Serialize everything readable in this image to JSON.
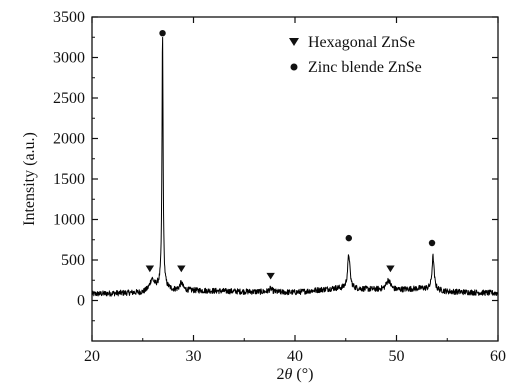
{
  "chart_data": {
    "type": "line",
    "title": "",
    "xlabel": "2θ (°)",
    "xlabel_parts": {
      "prefix": "2",
      "symbol": "θ",
      "suffix": " (°)"
    },
    "ylabel": "Intensity (a.u.)",
    "xlim": [
      20,
      60
    ],
    "ylim": [
      -500,
      3500
    ],
    "x_ticks": [
      20,
      30,
      40,
      50,
      60
    ],
    "y_ticks": [
      0,
      500,
      1000,
      1500,
      2000,
      2500,
      3000,
      3500
    ],
    "grid": false,
    "legend_placement": "top-right",
    "legend": [
      {
        "marker": "down-triangle",
        "label": "Hexagonal ZnSe"
      },
      {
        "marker": "circle",
        "label": "Zinc blende ZnSe"
      }
    ],
    "series": [
      {
        "color": "#000000",
        "baseline": [
          [
            20,
            80
          ],
          [
            25,
            100
          ],
          [
            26.5,
            170
          ],
          [
            28,
            130
          ],
          [
            35,
            110
          ],
          [
            40,
            100
          ],
          [
            44,
            150
          ],
          [
            47,
            140
          ],
          [
            50,
            130
          ],
          [
            52.5,
            150
          ],
          [
            55,
            110
          ],
          [
            60,
            90
          ]
        ],
        "peaks": [
          {
            "x": 25.9,
            "height": 120,
            "width": 0.45
          },
          {
            "x": 26.95,
            "height": 3150,
            "width": 0.13
          },
          {
            "x": 28.8,
            "height": 90,
            "width": 0.35
          },
          {
            "x": 37.6,
            "height": 40,
            "width": 0.4
          },
          {
            "x": 45.3,
            "height": 420,
            "width": 0.28
          },
          {
            "x": 49.2,
            "height": 120,
            "width": 0.5
          },
          {
            "x": 53.6,
            "height": 410,
            "width": 0.25
          }
        ],
        "noise_amplitude": 35
      }
    ],
    "annotations": [
      {
        "marker": "down-triangle",
        "x": 25.7,
        "y": 390,
        "phase": "Hexagonal ZnSe"
      },
      {
        "marker": "circle",
        "x": 26.95,
        "y": 3300,
        "phase": "Zinc blende ZnSe"
      },
      {
        "marker": "down-triangle",
        "x": 28.8,
        "y": 390,
        "phase": "Hexagonal ZnSe"
      },
      {
        "marker": "down-triangle",
        "x": 37.6,
        "y": 300,
        "phase": "Hexagonal ZnSe"
      },
      {
        "marker": "circle",
        "x": 45.3,
        "y": 770,
        "phase": "Zinc blende ZnSe"
      },
      {
        "marker": "down-triangle",
        "x": 49.4,
        "y": 390,
        "phase": "Hexagonal ZnSe"
      },
      {
        "marker": "circle",
        "x": 53.5,
        "y": 710,
        "phase": "Zinc blende ZnSe"
      }
    ]
  }
}
